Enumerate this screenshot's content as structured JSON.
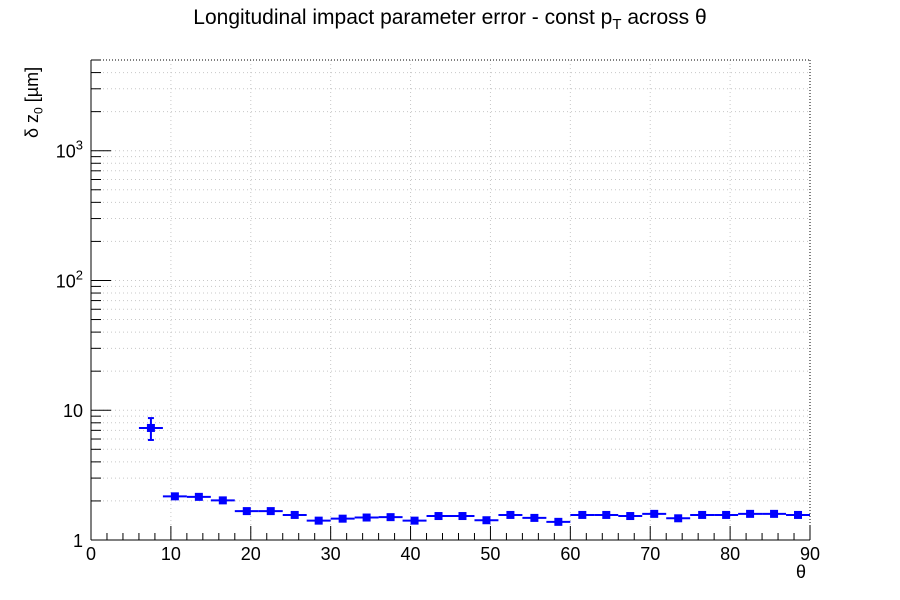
{
  "chart_data": {
    "type": "scatter",
    "title": {
      "main": "Longitudinal impact parameter error - const p",
      "sub": "T",
      "tail": " across θ"
    },
    "xlabel": "θ",
    "ylabel": {
      "main": "δ z",
      "sub": "0",
      "tail": " [µm]"
    },
    "xlim": [
      0,
      90
    ],
    "ylim": [
      1,
      5000
    ],
    "yscale": "log",
    "grid": true,
    "legend": "none",
    "x_ticks": [
      0,
      10,
      20,
      30,
      40,
      50,
      60,
      70,
      80,
      90
    ],
    "y_ticks": [
      {
        "value": 1,
        "base": "1",
        "exp": ""
      },
      {
        "value": 10,
        "base": "10",
        "exp": ""
      },
      {
        "value": 100,
        "base": "10",
        "exp": "2"
      },
      {
        "value": 1000,
        "base": "10",
        "exp": "3"
      }
    ],
    "series": [
      {
        "color": "#0000ff",
        "marker": "square",
        "x_err": 1.5,
        "points": [
          {
            "x": 7.5,
            "y": 7.3,
            "y_lo": 5.9,
            "y_hi": 8.7
          },
          {
            "x": 10.5,
            "y": 2.17
          },
          {
            "x": 13.5,
            "y": 2.15
          },
          {
            "x": 16.5,
            "y": 2.02
          },
          {
            "x": 19.5,
            "y": 1.67
          },
          {
            "x": 22.5,
            "y": 1.67
          },
          {
            "x": 25.5,
            "y": 1.56
          },
          {
            "x": 28.5,
            "y": 1.41
          },
          {
            "x": 31.5,
            "y": 1.46
          },
          {
            "x": 34.5,
            "y": 1.49
          },
          {
            "x": 37.5,
            "y": 1.5
          },
          {
            "x": 40.5,
            "y": 1.41
          },
          {
            "x": 43.5,
            "y": 1.53
          },
          {
            "x": 46.5,
            "y": 1.53
          },
          {
            "x": 49.5,
            "y": 1.42
          },
          {
            "x": 52.5,
            "y": 1.56
          },
          {
            "x": 55.5,
            "y": 1.48
          },
          {
            "x": 58.5,
            "y": 1.38
          },
          {
            "x": 61.5,
            "y": 1.56
          },
          {
            "x": 64.5,
            "y": 1.56
          },
          {
            "x": 67.5,
            "y": 1.53
          },
          {
            "x": 70.5,
            "y": 1.59
          },
          {
            "x": 73.5,
            "y": 1.47
          },
          {
            "x": 76.5,
            "y": 1.56
          },
          {
            "x": 79.5,
            "y": 1.56
          },
          {
            "x": 82.5,
            "y": 1.59
          },
          {
            "x": 85.5,
            "y": 1.59
          },
          {
            "x": 88.5,
            "y": 1.56
          }
        ]
      }
    ]
  }
}
